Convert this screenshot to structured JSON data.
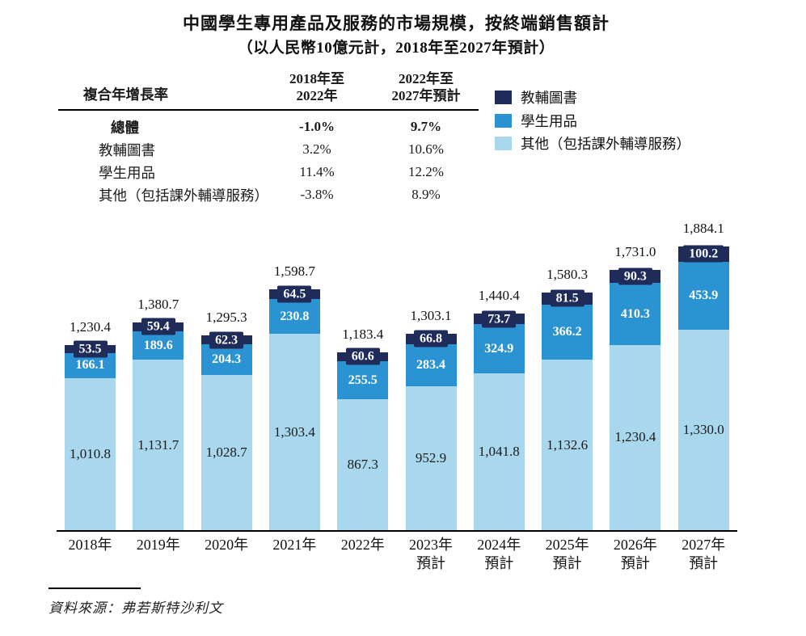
{
  "title": "中國學生專用產品及服務的市場規模，按終端銷售額計",
  "subtitle": "（以人民幣10億元計，2018年至2027年預計）",
  "cagr_table": {
    "header_label": "複合年增長率",
    "col1": {
      "line1": "2018年至",
      "line2": "2022年"
    },
    "col2": {
      "line1": "2022年至",
      "line2": "2027年預計"
    },
    "rows": [
      {
        "label": "總體",
        "v1": "-1.0%",
        "v2": "9.7%",
        "bold": true
      },
      {
        "label": "教輔圖書",
        "v1": "3.2%",
        "v2": "10.6%",
        "bold": false
      },
      {
        "label": "學生用品",
        "v1": "11.4%",
        "v2": "12.2%",
        "bold": false
      },
      {
        "label": "其他（包括課外輔導服務）",
        "v1": "-3.8%",
        "v2": "8.9%",
        "bold": false
      }
    ]
  },
  "legend": [
    {
      "label": "教輔圖書",
      "color": "#1f2c5a"
    },
    {
      "label": "學生用品",
      "color": "#2b93d1"
    },
    {
      "label": "其他（包括課外輔導服務）",
      "color": "#a9d8ee"
    }
  ],
  "colors": {
    "books_navy": "#1f2c5a",
    "supplies_blue": "#2b93d1",
    "other_light_blue": "#a9d8ee",
    "axis_black": "#000000"
  },
  "chart_data": {
    "type": "bar",
    "stacked": true,
    "title": "中國學生專用產品及服務的市場規模，按終端銷售額計",
    "unit": "人民幣10億元",
    "ylim": [
      0,
      1900
    ],
    "grid": false,
    "legend_position": "top-right",
    "categories": [
      "2018年",
      "2019年",
      "2020年",
      "2021年",
      "2022年",
      "2023年預計",
      "2024年預計",
      "2025年預計",
      "2026年預計",
      "2027年預計"
    ],
    "series": [
      {
        "name": "教輔圖書",
        "color": "#1f2c5a",
        "values": [
          53.5,
          59.4,
          62.3,
          64.5,
          60.6,
          66.8,
          73.7,
          81.5,
          90.3,
          100.2
        ]
      },
      {
        "name": "學生用品",
        "color": "#2b93d1",
        "values": [
          166.1,
          189.6,
          204.3,
          230.8,
          255.5,
          283.4,
          324.9,
          366.2,
          410.3,
          453.9
        ]
      },
      {
        "name": "其他（包括課外輔導服務）",
        "color": "#a9d8ee",
        "values": [
          1010.8,
          1131.7,
          1028.7,
          1303.4,
          867.3,
          952.9,
          1041.8,
          1132.6,
          1230.4,
          1330.0
        ]
      }
    ],
    "totals": [
      1230.4,
      1380.7,
      1295.3,
      1598.7,
      1183.4,
      1303.1,
      1440.4,
      1580.3,
      1731.0,
      1884.1
    ],
    "display": [
      {
        "year": "2018年",
        "forecast": "",
        "total": "1,230.4",
        "books": "53.5",
        "supplies": "166.1",
        "other": "1,010.8"
      },
      {
        "year": "2019年",
        "forecast": "",
        "total": "1,380.7",
        "books": "59.4",
        "supplies": "189.6",
        "other": "1,131.7"
      },
      {
        "year": "2020年",
        "forecast": "",
        "total": "1,295.3",
        "books": "62.3",
        "supplies": "204.3",
        "other": "1,028.7"
      },
      {
        "year": "2021年",
        "forecast": "",
        "total": "1,598.7",
        "books": "64.5",
        "supplies": "230.8",
        "other": "1,303.4"
      },
      {
        "year": "2022年",
        "forecast": "",
        "total": "1,183.4",
        "books": "60.6",
        "supplies": "255.5",
        "other": "867.3"
      },
      {
        "year": "2023年",
        "forecast": "預計",
        "total": "1,303.1",
        "books": "66.8",
        "supplies": "283.4",
        "other": "952.9"
      },
      {
        "year": "2024年",
        "forecast": "預計",
        "total": "1,440.4",
        "books": "73.7",
        "supplies": "324.9",
        "other": "1,041.8"
      },
      {
        "year": "2025年",
        "forecast": "預計",
        "total": "1,580.3",
        "books": "81.5",
        "supplies": "366.2",
        "other": "1,132.6"
      },
      {
        "year": "2026年",
        "forecast": "預計",
        "total": "1,731.0",
        "books": "90.3",
        "supplies": "410.3",
        "other": "1,230.4"
      },
      {
        "year": "2027年",
        "forecast": "預計",
        "total": "1,884.1",
        "books": "100.2",
        "supplies": "453.9",
        "other": "1,330.0"
      }
    ]
  },
  "source": "資料來源：弗若斯特沙利文"
}
